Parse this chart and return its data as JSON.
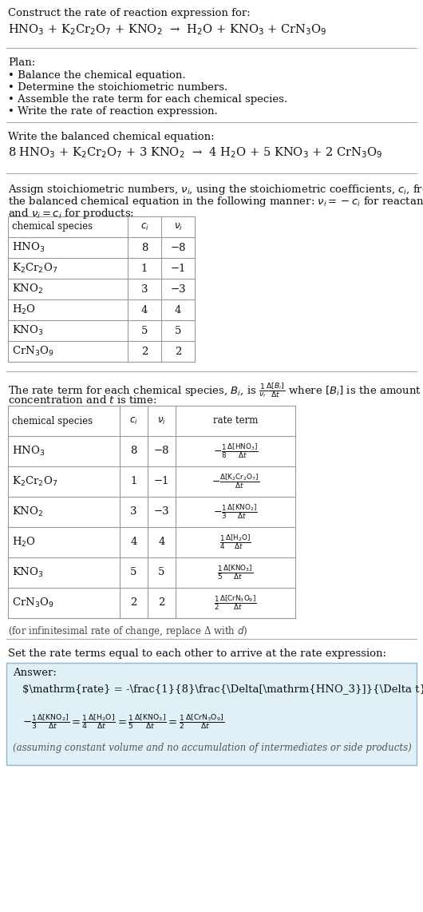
{
  "bg_color": "#ffffff",
  "text_color": "#000000",
  "title_line1": "Construct the rate of reaction expression for:",
  "reaction_unbalanced": "HNO$_3$ + K$_2$Cr$_2$O$_7$ + KNO$_2$  →  H$_2$O + KNO$_3$ + CrN$_3$O$_9$",
  "plan_header": "Plan:",
  "plan_items": [
    "• Balance the chemical equation.",
    "• Determine the stoichiometric numbers.",
    "• Assemble the rate term for each chemical species.",
    "• Write the rate of reaction expression."
  ],
  "balanced_header": "Write the balanced chemical equation:",
  "reaction_balanced": "8 HNO$_3$ + K$_2$Cr$_2$O$_7$ + 3 KNO$_2$  →  4 H$_2$O + 5 KNO$_3$ + 2 CrN$_3$O$_9$",
  "stoich_intro1": "Assign stoichiometric numbers, $\\nu_i$, using the stoichiometric coefficients, $c_i$, from",
  "stoich_intro2": "the balanced chemical equation in the following manner: $\\nu_i = -c_i$ for reactants",
  "stoich_intro3": "and $\\nu_i = c_i$ for products:",
  "table1_headers": [
    "chemical species",
    "$c_i$",
    "$\\nu_i$"
  ],
  "table1_rows": [
    [
      "HNO$_3$",
      "8",
      "−8"
    ],
    [
      "K$_2$Cr$_2$O$_7$",
      "1",
      "−1"
    ],
    [
      "KNO$_2$",
      "3",
      "−3"
    ],
    [
      "H$_2$O",
      "4",
      "4"
    ],
    [
      "KNO$_3$",
      "5",
      "5"
    ],
    [
      "CrN$_3$O$_9$",
      "2",
      "2"
    ]
  ],
  "rate_term_intro1": "The rate term for each chemical species, $B_i$, is $\\frac{1}{\\nu_i}\\frac{\\Delta[B_i]}{\\Delta t}$ where $[B_i]$ is the amount",
  "rate_term_intro2": "concentration and $t$ is time:",
  "table2_headers": [
    "chemical species",
    "$c_i$",
    "$\\nu_i$",
    "rate term"
  ],
  "table2_rows": [
    [
      "HNO$_3$",
      "8",
      "−8",
      "$-\\frac{1}{8}\\frac{\\Delta[\\mathrm{HNO_3}]}{\\Delta t}$"
    ],
    [
      "K$_2$Cr$_2$O$_7$",
      "1",
      "−1",
      "$-\\frac{\\Delta[\\mathrm{K_2Cr_2O_7}]}{\\Delta t}$"
    ],
    [
      "KNO$_2$",
      "3",
      "−3",
      "$-\\frac{1}{3}\\frac{\\Delta[\\mathrm{KNO_2}]}{\\Delta t}$"
    ],
    [
      "H$_2$O",
      "4",
      "4",
      "$\\frac{1}{4}\\frac{\\Delta[\\mathrm{H_2O}]}{\\Delta t}$"
    ],
    [
      "KNO$_3$",
      "5",
      "5",
      "$\\frac{1}{5}\\frac{\\Delta[\\mathrm{KNO_3}]}{\\Delta t}$"
    ],
    [
      "CrN$_3$O$_9$",
      "2",
      "2",
      "$\\frac{1}{2}\\frac{\\Delta[\\mathrm{CrN_3O_9}]}{\\Delta t}$"
    ]
  ],
  "infinitesimal_note": "(for infinitesimal rate of change, replace Δ with $d$)",
  "rate_expr_intro": "Set the rate terms equal to each other to arrive at the rate expression:",
  "answer_box_color": "#dff0f7",
  "answer_box_border": "#90b8cc",
  "answer_label": "Answer:",
  "answer_note": "(assuming constant volume and no accumulation of intermediates or side products)"
}
